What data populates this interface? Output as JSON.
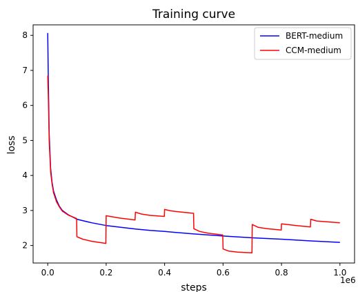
{
  "chart_data": {
    "type": "line",
    "title": "Training curve",
    "xlabel": "steps",
    "ylabel": "loss",
    "x_offset_label": "1e6",
    "xlim": [
      -0.05,
      1.05
    ],
    "ylim": [
      1.5,
      8.3
    ],
    "x_ticks": [
      0.0,
      0.2,
      0.4,
      0.6,
      0.8,
      1.0
    ],
    "x_tick_labels": [
      "0.0",
      "0.2",
      "0.4",
      "0.6",
      "0.8",
      "1.0"
    ],
    "y_ticks": [
      2,
      3,
      4,
      5,
      6,
      7,
      8
    ],
    "y_tick_labels": [
      "2",
      "3",
      "4",
      "5",
      "6",
      "7",
      "8"
    ],
    "grid": false,
    "legend_placement": "top-right",
    "series": [
      {
        "name": "BERT-medium",
        "color": "#0000ff",
        "x": [
          0.0,
          0.002,
          0.005,
          0.01,
          0.015,
          0.02,
          0.03,
          0.04,
          0.05,
          0.07,
          0.1,
          0.15,
          0.2,
          0.25,
          0.3,
          0.35,
          0.4,
          0.5,
          0.6,
          0.7,
          0.8,
          0.9,
          1.0
        ],
        "y": [
          8.07,
          6.8,
          5.2,
          4.2,
          3.8,
          3.55,
          3.3,
          3.12,
          3.0,
          2.88,
          2.75,
          2.65,
          2.57,
          2.52,
          2.47,
          2.43,
          2.4,
          2.33,
          2.27,
          2.22,
          2.18,
          2.13,
          2.09
        ]
      },
      {
        "name": "CCM-medium",
        "color": "#ff0000",
        "x": [
          0.0,
          0.002,
          0.005,
          0.01,
          0.015,
          0.02,
          0.03,
          0.04,
          0.05,
          0.07,
          0.099,
          0.1,
          0.12,
          0.15,
          0.199,
          0.2,
          0.22,
          0.25,
          0.299,
          0.3,
          0.32,
          0.35,
          0.399,
          0.4,
          0.42,
          0.45,
          0.499,
          0.5,
          0.52,
          0.55,
          0.599,
          0.6,
          0.62,
          0.65,
          0.699,
          0.7,
          0.72,
          0.75,
          0.799,
          0.8,
          0.82,
          0.85,
          0.899,
          0.9,
          0.92,
          0.95,
          1.0
        ],
        "y": [
          6.85,
          6.3,
          5.0,
          4.1,
          3.75,
          3.5,
          3.25,
          3.1,
          2.98,
          2.87,
          2.77,
          2.25,
          2.18,
          2.12,
          2.06,
          2.85,
          2.82,
          2.78,
          2.73,
          2.95,
          2.9,
          2.86,
          2.83,
          3.03,
          2.99,
          2.96,
          2.92,
          2.48,
          2.4,
          2.35,
          2.3,
          1.9,
          1.84,
          1.81,
          1.79,
          2.6,
          2.52,
          2.48,
          2.44,
          2.62,
          2.6,
          2.57,
          2.53,
          2.75,
          2.7,
          2.68,
          2.65
        ]
      }
    ]
  }
}
